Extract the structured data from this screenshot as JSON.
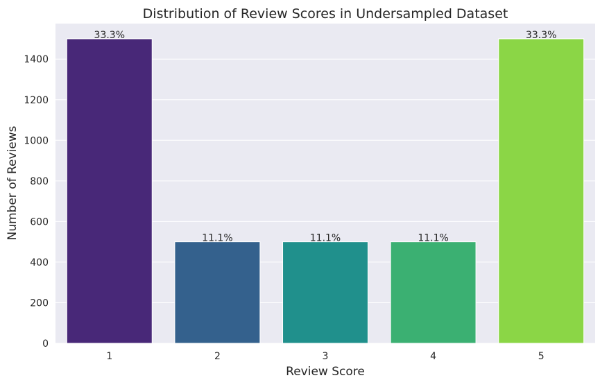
{
  "chart_data": {
    "type": "bar",
    "title": "Distribution of Review Scores in Undersampled Dataset",
    "xlabel": "Review Score",
    "ylabel": "Number of Reviews",
    "categories": [
      "1",
      "2",
      "3",
      "4",
      "5"
    ],
    "values": [
      1500,
      500,
      500,
      500,
      1500
    ],
    "data_labels": [
      "33.3%",
      "11.1%",
      "11.1%",
      "11.1%",
      "33.3%"
    ],
    "bar_colors": [
      "#482878",
      "#34618d",
      "#20908c",
      "#3bb072",
      "#8bd646"
    ],
    "ylim": [
      0,
      1575
    ],
    "yticks": [
      0,
      200,
      400,
      600,
      800,
      1000,
      1200,
      1400
    ],
    "grid": true,
    "background_color": "#eaeaf2",
    "legend": "none"
  }
}
